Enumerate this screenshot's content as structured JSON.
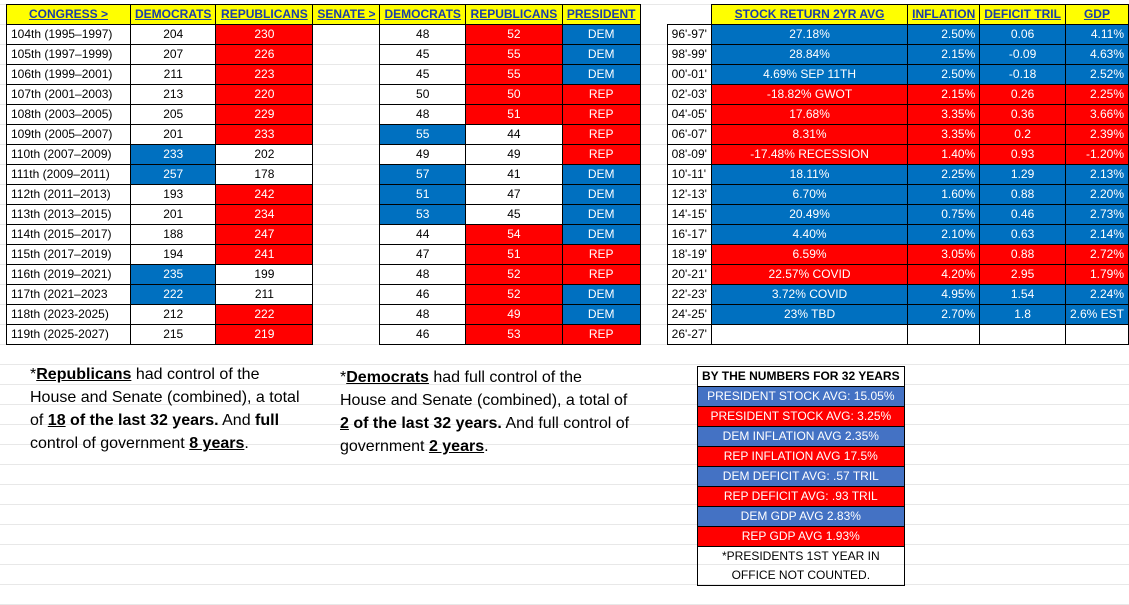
{
  "header": {
    "congress": "CONGRESS >",
    "democrats": "DEMOCRATS",
    "republicans": "REPUBLICANS",
    "senate": "SENATE >",
    "senate_dem": "DEMOCRATS",
    "senate_rep": "REPUBLICANS",
    "president": "PRESIDENT",
    "stock": "STOCK RETURN 2YR AVG",
    "inflation": "INFLATION",
    "deficit": "DEFICIT TRIL",
    "gdp": "GDP"
  },
  "rows": [
    {
      "congress": "104th (1995–1997)",
      "house_d": "204",
      "house_r": "230",
      "sen_d": "48",
      "sen_r": "52",
      "pres": "DEM",
      "yrs": "96'-97'",
      "stock": "27.18%",
      "infl": "2.50%",
      "deficit": "0.06",
      "gdp": "4.11%"
    },
    {
      "congress": "105th (1997–1999)",
      "house_d": "207",
      "house_r": "226",
      "sen_d": "45",
      "sen_r": "55",
      "pres": "DEM",
      "yrs": "98'-99'",
      "stock": "28.84%",
      "infl": "2.15%",
      "deficit": "-0.09",
      "gdp": "4.63%"
    },
    {
      "congress": "106th (1999–2001)",
      "house_d": "211",
      "house_r": "223",
      "sen_d": "45",
      "sen_r": "55",
      "pres": "DEM",
      "yrs": "00'-01'",
      "stock": "4.69% SEP 11TH",
      "infl": "2.50%",
      "deficit": "-0.18",
      "gdp": "2.52%"
    },
    {
      "congress": "107th (2001–2003)",
      "house_d": "213",
      "house_r": "220",
      "sen_d": "50",
      "sen_r": "50",
      "pres": "REP",
      "yrs": "02'-03'",
      "stock": "-18.82% GWOT",
      "infl": "2.15%",
      "deficit": "0.26",
      "gdp": "2.25%"
    },
    {
      "congress": "108th (2003–2005)",
      "house_d": "205",
      "house_r": "229",
      "sen_d": "48",
      "sen_r": "51",
      "pres": "REP",
      "yrs": "04'-05'",
      "stock": "17.68%",
      "infl": "3.35%",
      "deficit": "0.36",
      "gdp": "3.66%"
    },
    {
      "congress": "109th (2005–2007)",
      "house_d": "201",
      "house_r": "233",
      "sen_d": "55",
      "sen_r": "44",
      "pres": "REP",
      "yrs": "06'-07'",
      "stock": "8.31%",
      "infl": "3.35%",
      "deficit": "0.2",
      "gdp": "2.39%"
    },
    {
      "congress": "110th (2007–2009)",
      "house_d": "233",
      "house_r": "202",
      "sen_d": "49",
      "sen_r": "49",
      "pres": "REP",
      "yrs": "08'-09'",
      "stock": "-17.48% RECESSION",
      "infl": "1.40%",
      "deficit": "0.93",
      "gdp": "-1.20%"
    },
    {
      "congress": "111th (2009–2011)",
      "house_d": "257",
      "house_r": "178",
      "sen_d": "57",
      "sen_r": "41",
      "pres": "DEM",
      "yrs": "10'-11'",
      "stock": "18.11%",
      "infl": "2.25%",
      "deficit": "1.29",
      "gdp": "2.13%"
    },
    {
      "congress": "112th (2011–2013)",
      "house_d": "193",
      "house_r": "242",
      "sen_d": "51",
      "sen_r": "47",
      "pres": "DEM",
      "yrs": "12'-13'",
      "stock": "6.70%",
      "infl": "1.60%",
      "deficit": "0.88",
      "gdp": "2.20%"
    },
    {
      "congress": "113th (2013–2015)",
      "house_d": "201",
      "house_r": "234",
      "sen_d": "53",
      "sen_r": "45",
      "pres": "DEM",
      "yrs": "14'-15'",
      "stock": "20.49%",
      "infl": "0.75%",
      "deficit": "0.46",
      "gdp": "2.73%"
    },
    {
      "congress": "114th (2015–2017)",
      "house_d": "188",
      "house_r": "247",
      "sen_d": "44",
      "sen_r": "54",
      "pres": "DEM",
      "yrs": "16'-17'",
      "stock": "4.40%",
      "infl": "2.10%",
      "deficit": "0.63",
      "gdp": "2.14%"
    },
    {
      "congress": "115th (2017–2019)",
      "house_d": "194",
      "house_r": "241",
      "sen_d": "47",
      "sen_r": "51",
      "pres": "REP",
      "yrs": "18'-19'",
      "stock": "6.59%",
      "infl": "3.05%",
      "deficit": "0.88",
      "gdp": "2.72%"
    },
    {
      "congress": "116th (2019–2021)",
      "house_d": "235",
      "house_r": "199",
      "sen_d": "48",
      "sen_r": "52",
      "pres": "REP",
      "yrs": "20'-21'",
      "stock": "22.57% COVID",
      "infl": "4.20%",
      "deficit": "2.95",
      "gdp": "1.79%"
    },
    {
      "congress": "117th (2021–2023",
      "house_d": "222",
      "house_r": "211",
      "sen_d": "46",
      "sen_r": "52",
      "pres": "DEM",
      "yrs": "22'-23'",
      "stock": "3.72% COVID",
      "infl": "4.95%",
      "deficit": "1.54",
      "gdp": "2.24%"
    },
    {
      "congress": "118th (2023-2025)",
      "house_d": "212",
      "house_r": "222",
      "sen_d": "48",
      "sen_r": "49",
      "pres": "DEM",
      "yrs": "24'-25'",
      "stock": "23% TBD",
      "infl": "2.70%",
      "deficit": "1.8",
      "gdp": "2.6% EST"
    },
    {
      "congress": "119th (2025-2027)",
      "house_d": "215",
      "house_r": "219",
      "sen_d": "46",
      "sen_r": "53",
      "pres": "REP",
      "yrs": "26'-27'",
      "stock": "",
      "infl": "",
      "deficit": "",
      "gdp": ""
    }
  ],
  "notes": {
    "left": {
      "a": "*",
      "b": "Republicans",
      "c": " had control of the House and Senate (combined), a total of ",
      "d": "18",
      "e": " of the last 32 years.",
      "f": " And ",
      "g": "full",
      "h": " control of government ",
      "i": "8 years",
      "j": "."
    },
    "right": {
      "a": "*",
      "b": "Democrats",
      "c": " had full control of the House and Senate (combined), a total of ",
      "d": "2",
      "e": " of the last 32 years.",
      "f": "  And full control of government ",
      "g": "2 years",
      "h": "."
    }
  },
  "summary": {
    "title": "BY THE NUMBERS FOR 32 YEARS",
    "items": [
      "PRESIDENT STOCK AVG: 15.05%",
      "PRESIDENT STOCK AVG: 3.25%",
      "DEM INFLATION AVG 2.35%",
      "REP INFLATION AVG 17.5%",
      "DEM DEFICIT AVG: .57 TRIL",
      "REP DEFICIT AVG: .93 TRIL",
      "DEM GDP AVG 2.83%",
      "REP GDP AVG 1.93%"
    ],
    "footnote1": "*PRESIDENTS 1ST YEAR IN",
    "footnote2": "OFFICE NOT COUNTED."
  },
  "colors": {
    "red": "#ff0000",
    "blue": "#0070c0",
    "yellow": "#ffff00",
    "light_blue": "#4472c4"
  }
}
